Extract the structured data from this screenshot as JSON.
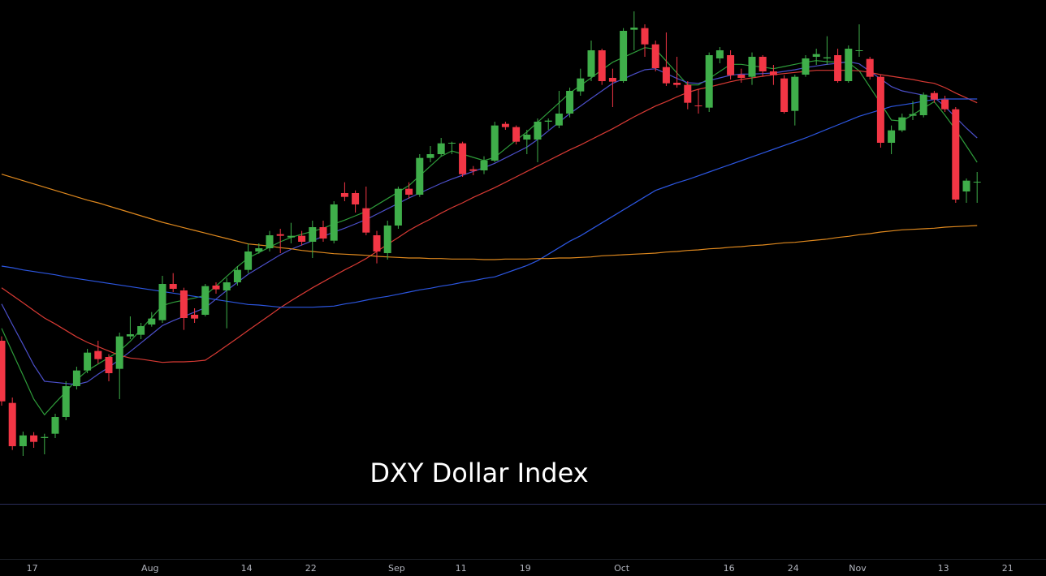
{
  "chart_data": {
    "type": "candlestick",
    "title": "DXY Dollar Index",
    "categories": [
      null,
      null,
      null,
      "17",
      null,
      null,
      null,
      null,
      null,
      null,
      null,
      null,
      null,
      null,
      "Aug",
      null,
      null,
      null,
      null,
      null,
      null,
      null,
      null,
      "14",
      null,
      null,
      null,
      null,
      null,
      "22",
      null,
      null,
      null,
      null,
      null,
      null,
      null,
      "Sep",
      null,
      null,
      null,
      null,
      null,
      "11",
      null,
      null,
      null,
      null,
      null,
      "19",
      null,
      null,
      null,
      null,
      null,
      null,
      null,
      null,
      "Oct",
      null,
      null,
      null,
      null,
      null,
      null,
      null,
      null,
      null,
      "16",
      null,
      null,
      null,
      null,
      null,
      "24",
      null,
      null,
      null,
      null,
      null,
      "Nov",
      null,
      null,
      null,
      null,
      null,
      null,
      null,
      "13",
      null,
      null,
      null,
      null,
      null,
      "21"
    ],
    "open": [
      101.3,
      100.15,
      99.35,
      99.55,
      99.5,
      99.58,
      99.89,
      100.46,
      100.75,
      101.11,
      101.0,
      100.78,
      101.38,
      101.41,
      101.6,
      101.68,
      102.35,
      102.23,
      101.78,
      101.78,
      102.32,
      102.23,
      102.38,
      102.61,
      102.95,
      103.01,
      103.27,
      103.21,
      103.24,
      103.13,
      103.4,
      103.15,
      104.03,
      104.03,
      103.75,
      103.25,
      102.92,
      103.43,
      104.11,
      104.0,
      104.68,
      104.75,
      104.95,
      104.95,
      104.47,
      104.45,
      104.63,
      105.31,
      105.25,
      105.02,
      105.02,
      105.35,
      105.28,
      105.5,
      105.91,
      106.18,
      106.67,
      106.16,
      106.1,
      107.05,
      107.08,
      106.78,
      106.36,
      106.07,
      106.03,
      105.65,
      105.61,
      106.52,
      106.58,
      106.22,
      106.18,
      106.55,
      106.28,
      106.15,
      105.55,
      106.22,
      106.55,
      106.52,
      106.58,
      106.1,
      106.66,
      106.51,
      106.18,
      104.96,
      105.19,
      105.46,
      105.47,
      105.88,
      105.76,
      105.58,
      104.06,
      104.23,
      null,
      null,
      null
    ],
    "high": [
      101.38,
      100.25,
      99.62,
      99.61,
      99.58,
      99.95,
      100.55,
      100.82,
      101.15,
      101.3,
      101.05,
      101.45,
      101.75,
      101.63,
      101.83,
      102.5,
      102.55,
      102.28,
      101.9,
      102.35,
      102.38,
      102.46,
      102.68,
      103.1,
      103.1,
      103.33,
      103.37,
      103.48,
      103.33,
      103.52,
      103.52,
      103.88,
      104.23,
      104.08,
      104.15,
      103.33,
      103.52,
      104.15,
      104.23,
      104.75,
      104.9,
      105.05,
      104.98,
      104.98,
      104.53,
      104.71,
      105.35,
      105.35,
      105.28,
      105.2,
      105.41,
      105.41,
      105.92,
      105.98,
      106.33,
      106.85,
      106.7,
      106.33,
      107.08,
      107.39,
      107.15,
      106.85,
      107.0,
      106.55,
      106.1,
      105.95,
      106.63,
      106.73,
      106.67,
      106.33,
      106.63,
      106.58,
      106.4,
      106.21,
      106.22,
      106.58,
      106.7,
      106.93,
      106.7,
      106.76,
      107.15,
      106.55,
      106.22,
      105.28,
      105.5,
      105.73,
      105.89,
      105.92,
      105.83,
      105.62,
      104.3,
      104.42,
      null,
      null,
      null
    ],
    "low": [
      100.1,
      99.28,
      99.17,
      99.32,
      99.2,
      99.5,
      99.83,
      100.4,
      100.7,
      100.88,
      100.55,
      100.22,
      101.33,
      101.33,
      101.56,
      101.63,
      102.2,
      101.5,
      101.63,
      101.75,
      102.17,
      101.53,
      102.32,
      102.55,
      102.91,
      102.95,
      102.92,
      103.1,
      103.06,
      102.83,
      103.13,
      103.1,
      103.88,
      103.67,
      103.25,
      102.73,
      102.8,
      103.37,
      103.93,
      103.96,
      104.6,
      104.71,
      104.75,
      104.33,
      104.36,
      104.38,
      104.6,
      105.2,
      104.93,
      104.75,
      104.6,
      105.2,
      105.23,
      105.43,
      105.83,
      106.1,
      106.03,
      105.62,
      106.07,
      106.67,
      106.55,
      106.28,
      106.01,
      105.98,
      105.58,
      105.5,
      105.53,
      106.43,
      106.13,
      106.07,
      106.03,
      106.18,
      106.03,
      105.5,
      105.28,
      106.18,
      106.4,
      106.4,
      106.07,
      106.07,
      106.55,
      106.13,
      104.87,
      104.75,
      105.16,
      105.38,
      105.43,
      105.7,
      105.53,
      103.85,
      103.85,
      103.85,
      null,
      null,
      null
    ],
    "close": [
      100.18,
      99.35,
      99.55,
      99.43,
      99.52,
      99.89,
      100.46,
      100.75,
      101.08,
      100.96,
      100.7,
      101.38,
      101.42,
      101.57,
      101.71,
      102.35,
      102.26,
      101.72,
      101.71,
      102.31,
      102.25,
      102.38,
      102.61,
      102.95,
      103.01,
      103.25,
      103.24,
      103.24,
      103.13,
      103.4,
      103.19,
      103.82,
      103.96,
      103.82,
      103.3,
      102.95,
      103.43,
      104.11,
      104.0,
      104.68,
      104.75,
      104.95,
      104.96,
      104.38,
      104.44,
      104.63,
      105.28,
      105.25,
      104.98,
      105.11,
      105.35,
      105.37,
      105.5,
      105.92,
      106.15,
      106.67,
      106.1,
      106.09,
      107.03,
      107.09,
      106.78,
      106.34,
      106.06,
      106.03,
      105.7,
      105.64,
      106.58,
      106.67,
      106.21,
      106.16,
      106.55,
      106.28,
      106.21,
      105.53,
      106.18,
      106.52,
      106.6,
      106.54,
      106.1,
      106.7,
      106.67,
      106.18,
      104.96,
      105.19,
      105.43,
      105.49,
      105.85,
      105.76,
      105.58,
      103.91,
      104.26,
      104.24,
      null,
      null,
      null
    ],
    "up_color": "#3fae4a",
    "down_color": "#f23645",
    "series": [
      {
        "color": "#2e9c3a",
        "values": [
          101.53,
          101.09,
          100.66,
          100.22,
          99.93,
          100.15,
          100.36,
          100.58,
          100.75,
          100.87,
          100.99,
          101.11,
          101.29,
          101.51,
          101.73,
          101.95,
          102.01,
          102.05,
          102.09,
          102.14,
          102.31,
          102.49,
          102.67,
          102.83,
          102.93,
          103.03,
          103.13,
          103.21,
          103.27,
          103.32,
          103.38,
          103.46,
          103.53,
          103.61,
          103.69,
          103.81,
          103.93,
          104.05,
          104.17,
          104.35,
          104.53,
          104.71,
          104.81,
          104.75,
          104.69,
          104.63,
          104.69,
          104.85,
          105.01,
          105.16,
          105.34,
          105.52,
          105.7,
          105.88,
          106.02,
          106.16,
          106.31,
          106.45,
          106.54,
          106.63,
          106.72,
          106.69,
          106.47,
          106.25,
          106.03,
          106.03,
          106.15,
          106.28,
          106.41,
          106.41,
          106.38,
          106.36,
          106.33,
          106.37,
          106.41,
          106.45,
          106.48,
          106.46,
          106.45,
          106.44,
          106.29,
          105.99,
          105.69,
          105.38,
          105.36,
          105.48,
          105.6,
          105.72,
          105.47,
          105.2,
          104.9,
          104.6,
          null,
          null,
          null
        ]
      },
      {
        "color": "#4b4fc9",
        "values": [
          101.98,
          101.6,
          101.23,
          100.85,
          100.55,
          100.53,
          100.51,
          100.49,
          100.54,
          100.68,
          100.81,
          100.95,
          101.1,
          101.26,
          101.42,
          101.58,
          101.67,
          101.75,
          101.83,
          101.91,
          102.07,
          102.23,
          102.38,
          102.53,
          102.65,
          102.77,
          102.89,
          102.99,
          103.07,
          103.15,
          103.23,
          103.31,
          103.38,
          103.46,
          103.54,
          103.64,
          103.74,
          103.84,
          103.94,
          104.03,
          104.12,
          104.21,
          104.29,
          104.36,
          104.43,
          104.5,
          104.58,
          104.68,
          104.78,
          104.88,
          105.02,
          105.18,
          105.34,
          105.5,
          105.64,
          105.78,
          105.92,
          106.06,
          106.14,
          106.23,
          106.31,
          106.33,
          106.24,
          106.15,
          106.07,
          106.06,
          106.11,
          106.16,
          106.21,
          106.23,
          106.23,
          106.24,
          106.25,
          106.28,
          106.31,
          106.35,
          106.38,
          106.41,
          106.43,
          106.46,
          106.42,
          106.28,
          106.14,
          106.0,
          105.92,
          105.88,
          105.84,
          105.8,
          105.63,
          105.43,
          105.23,
          105.05,
          null,
          null,
          null
        ]
      },
      {
        "color": "#d83a34",
        "values": [
          102.28,
          102.14,
          102.0,
          101.86,
          101.72,
          101.61,
          101.49,
          101.37,
          101.27,
          101.19,
          101.11,
          101.03,
          100.98,
          100.96,
          100.93,
          100.9,
          100.91,
          100.91,
          100.92,
          100.94,
          101.07,
          101.21,
          101.35,
          101.49,
          101.63,
          101.77,
          101.91,
          102.04,
          102.16,
          102.28,
          102.39,
          102.5,
          102.61,
          102.71,
          102.82,
          102.95,
          103.08,
          103.21,
          103.34,
          103.45,
          103.55,
          103.66,
          103.76,
          103.85,
          103.95,
          104.04,
          104.13,
          104.23,
          104.33,
          104.43,
          104.53,
          104.63,
          104.73,
          104.83,
          104.92,
          105.02,
          105.12,
          105.22,
          105.33,
          105.44,
          105.54,
          105.64,
          105.72,
          105.81,
          105.89,
          105.95,
          105.99,
          106.04,
          106.09,
          106.13,
          106.16,
          106.19,
          106.22,
          106.24,
          106.26,
          106.28,
          106.3,
          106.3,
          106.3,
          106.3,
          106.29,
          106.26,
          106.22,
          106.19,
          106.16,
          106.13,
          106.09,
          106.06,
          105.98,
          105.88,
          105.79,
          105.7,
          null,
          null,
          null
        ]
      },
      {
        "color": "#2c56e0",
        "values": [
          102.68,
          102.65,
          102.61,
          102.58,
          102.55,
          102.52,
          102.48,
          102.45,
          102.42,
          102.39,
          102.36,
          102.33,
          102.3,
          102.27,
          102.24,
          102.21,
          102.18,
          102.15,
          102.12,
          102.09,
          102.06,
          102.03,
          102.0,
          101.97,
          101.96,
          101.94,
          101.92,
          101.92,
          101.92,
          101.92,
          101.93,
          101.94,
          101.98,
          102.01,
          102.05,
          102.09,
          102.12,
          102.16,
          102.2,
          102.24,
          102.27,
          102.31,
          102.34,
          102.38,
          102.41,
          102.45,
          102.48,
          102.55,
          102.62,
          102.69,
          102.78,
          102.9,
          103.02,
          103.14,
          103.24,
          103.36,
          103.48,
          103.6,
          103.72,
          103.84,
          103.96,
          104.08,
          104.15,
          104.22,
          104.28,
          104.35,
          104.42,
          104.49,
          104.56,
          104.63,
          104.7,
          104.77,
          104.84,
          104.91,
          104.98,
          105.05,
          105.13,
          105.21,
          105.29,
          105.37,
          105.45,
          105.51,
          105.57,
          105.63,
          105.66,
          105.69,
          105.73,
          105.76,
          105.77,
          105.77,
          105.77,
          105.77,
          null,
          null,
          null
        ]
      },
      {
        "color": "#e0891e",
        "values": [
          104.38,
          104.32,
          104.26,
          104.2,
          104.14,
          104.08,
          104.02,
          103.96,
          103.9,
          103.85,
          103.79,
          103.73,
          103.67,
          103.61,
          103.55,
          103.49,
          103.44,
          103.39,
          103.34,
          103.29,
          103.24,
          103.19,
          103.14,
          103.09,
          103.07,
          103.05,
          103.02,
          103.0,
          102.97,
          102.95,
          102.93,
          102.91,
          102.9,
          102.89,
          102.88,
          102.86,
          102.85,
          102.84,
          102.83,
          102.83,
          102.82,
          102.82,
          102.81,
          102.81,
          102.81,
          102.8,
          102.8,
          102.81,
          102.81,
          102.81,
          102.82,
          102.82,
          102.83,
          102.83,
          102.84,
          102.85,
          102.87,
          102.88,
          102.89,
          102.9,
          102.91,
          102.92,
          102.94,
          102.95,
          102.97,
          102.98,
          103.0,
          103.01,
          103.03,
          103.04,
          103.06,
          103.07,
          103.09,
          103.11,
          103.12,
          103.14,
          103.16,
          103.18,
          103.21,
          103.23,
          103.26,
          103.28,
          103.31,
          103.33,
          103.35,
          103.36,
          103.37,
          103.38,
          103.4,
          103.41,
          103.42,
          103.43,
          null,
          null,
          null
        ]
      }
    ],
    "ylim": [
      98.3,
      107.6
    ]
  }
}
